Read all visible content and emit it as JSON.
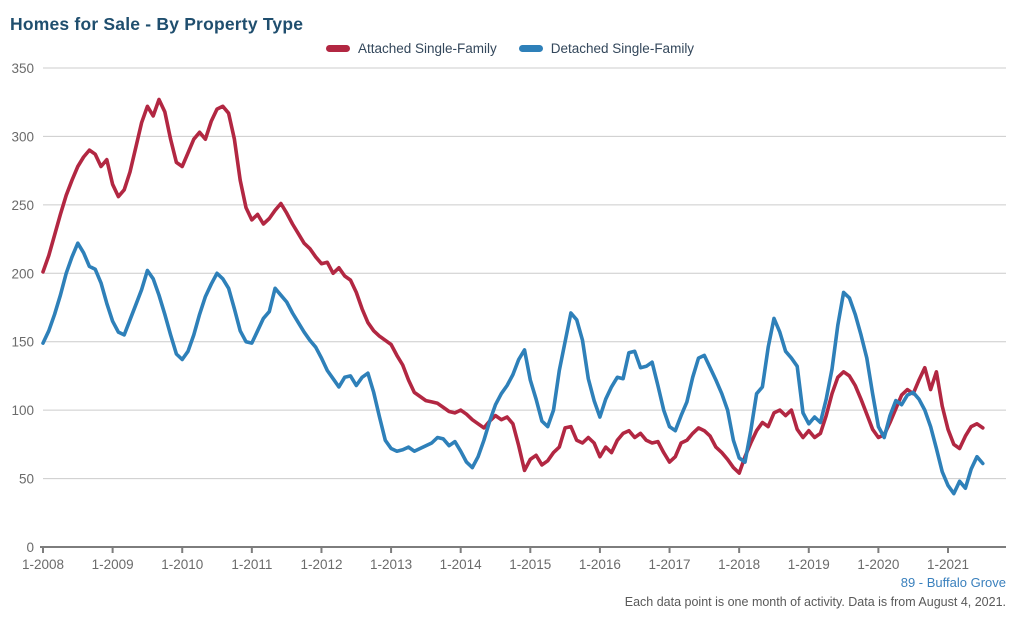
{
  "title": "Homes for Sale - By Property Type",
  "legend": {
    "items": [
      {
        "label": "Attached Single-Family",
        "color": "#b22742"
      },
      {
        "label": "Detached Single-Family",
        "color": "#2e80b9"
      }
    ]
  },
  "footer": {
    "attribution": "89 - Buffalo Grove",
    "note": "Each data point is one month of activity. Data is from August 4, 2021."
  },
  "colors": {
    "title_text": "#1f4e6e",
    "legend_text": "#33475b",
    "axis_line": "#7d7d7d",
    "gridline": "#cccccc",
    "tick_label": "#6b6b6b",
    "attribution_link": "#3a80bd",
    "note_text": "#595959",
    "attached_series": "#b22742",
    "detached_series": "#2e80b9"
  },
  "chart_data": {
    "type": "line",
    "title": "Homes for Sale - By Property Type",
    "xlabel": "",
    "ylabel": "",
    "x_unit": "month",
    "x_start": "2008-01",
    "x_end": "2021-07",
    "points_per_series": 163,
    "x_tick_labels": [
      "1-2008",
      "1-2009",
      "1-2010",
      "1-2011",
      "1-2012",
      "1-2013",
      "1-2014",
      "1-2015",
      "1-2016",
      "1-2017",
      "1-2018",
      "1-2019",
      "1-2020",
      "1-2021"
    ],
    "y_ticks": [
      0,
      50,
      100,
      150,
      200,
      250,
      300,
      350
    ],
    "ylim": [
      0,
      350
    ],
    "grid": "horizontal",
    "legend_position": "top-center",
    "series": [
      {
        "name": "Attached Single-Family",
        "color": "#b22742",
        "values": [
          201,
          213,
          228,
          243,
          257,
          268,
          278,
          285,
          290,
          287,
          278,
          283,
          265,
          256,
          261,
          274,
          292,
          310,
          322,
          315,
          327,
          318,
          298,
          281,
          278,
          288,
          298,
          303,
          298,
          311,
          320,
          322,
          317,
          298,
          268,
          248,
          239,
          243,
          236,
          240,
          246,
          251,
          244,
          236,
          229,
          222,
          218,
          212,
          207,
          208,
          200,
          204,
          198,
          195,
          186,
          174,
          164,
          158,
          154,
          151,
          148,
          140,
          133,
          122,
          113,
          110,
          107,
          106,
          105,
          102,
          99,
          98,
          100,
          97,
          93,
          90,
          87,
          92,
          96,
          93,
          95,
          90,
          74,
          56,
          64,
          67,
          60,
          63,
          69,
          73,
          87,
          88,
          78,
          76,
          80,
          76,
          66,
          73,
          69,
          78,
          83,
          85,
          80,
          83,
          78,
          76,
          77,
          69,
          62,
          66,
          76,
          78,
          83,
          87,
          85,
          81,
          73,
          69,
          64,
          58,
          54,
          66,
          76,
          85,
          91,
          88,
          98,
          100,
          96,
          100,
          86,
          80,
          85,
          80,
          83,
          96,
          112,
          124,
          128,
          125,
          118,
          108,
          97,
          86,
          80,
          82,
          91,
          101,
          111,
          115,
          112,
          122,
          131,
          115,
          128,
          103,
          86,
          75,
          72,
          81,
          88,
          90,
          87
        ]
      },
      {
        "name": "Detached Single-Family",
        "color": "#2e80b9",
        "values": [
          149,
          158,
          170,
          184,
          200,
          212,
          222,
          215,
          205,
          203,
          193,
          178,
          165,
          157,
          155,
          166,
          177,
          188,
          202,
          196,
          184,
          170,
          155,
          141,
          137,
          143,
          155,
          170,
          183,
          192,
          200,
          196,
          189,
          174,
          158,
          150,
          149,
          158,
          167,
          172,
          189,
          184,
          179,
          171,
          164,
          157,
          151,
          146,
          138,
          129,
          123,
          117,
          124,
          125,
          118,
          124,
          127,
          113,
          95,
          78,
          72,
          70,
          71,
          73,
          70,
          72,
          74,
          76,
          80,
          79,
          74,
          77,
          70,
          62,
          58,
          66,
          78,
          92,
          104,
          112,
          118,
          126,
          137,
          144,
          122,
          108,
          92,
          88,
          100,
          129,
          150,
          171,
          166,
          151,
          123,
          107,
          95,
          108,
          117,
          124,
          123,
          142,
          143,
          131,
          132,
          135,
          118,
          100,
          88,
          85,
          96,
          106,
          124,
          138,
          140,
          131,
          122,
          112,
          100,
          78,
          65,
          62,
          85,
          112,
          117,
          146,
          167,
          157,
          143,
          138,
          132,
          98,
          90,
          95,
          91,
          108,
          130,
          162,
          186,
          182,
          170,
          155,
          138,
          112,
          88,
          80,
          96,
          107,
          104,
          111,
          113,
          108,
          100,
          88,
          72,
          55,
          45,
          39,
          48,
          43,
          57,
          66,
          61
        ]
      }
    ]
  }
}
